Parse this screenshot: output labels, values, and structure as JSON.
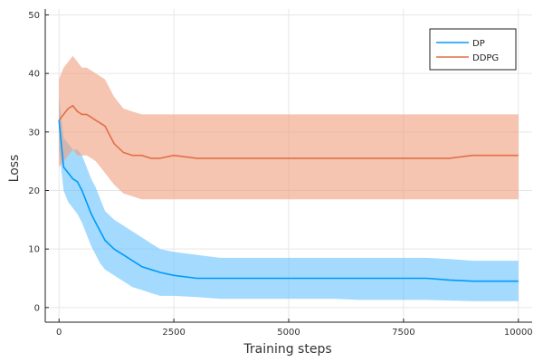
{
  "chart_data": {
    "type": "line",
    "title": "",
    "xlabel": "Training steps",
    "ylabel": "Loss",
    "xlim": [
      -300,
      10300
    ],
    "ylim": [
      -2.5,
      51
    ],
    "x_ticks": [
      0,
      2500,
      5000,
      7500,
      10000
    ],
    "x_tick_labels": [
      "0",
      "2500",
      "5000",
      "7500",
      "10000"
    ],
    "y_ticks": [
      0,
      10,
      20,
      30,
      40,
      50
    ],
    "y_tick_labels": [
      "0",
      "10",
      "20",
      "30",
      "40",
      "50"
    ],
    "grid": true,
    "legend_position": "top-right",
    "x": [
      0,
      100,
      200,
      300,
      400,
      500,
      600,
      700,
      800,
      900,
      1000,
      1200,
      1400,
      1600,
      1800,
      2000,
      2200,
      2500,
      3000,
      3500,
      4000,
      4500,
      5000,
      5500,
      6000,
      6500,
      7000,
      7500,
      8000,
      8500,
      9000,
      9500,
      10000
    ],
    "series": [
      {
        "name": "DP",
        "color": "#009af9",
        "band_color": "#66c2fb",
        "mean": [
          32,
          24,
          23,
          22,
          21.5,
          20,
          18,
          16,
          14.5,
          13,
          11.5,
          10,
          9,
          8,
          7,
          6.5,
          6,
          5.5,
          5,
          5,
          5,
          5,
          5,
          5,
          5,
          5,
          5,
          5,
          5,
          4.7,
          4.5,
          4.5,
          4.5
        ],
        "lower": [
          27,
          20,
          18,
          17,
          16,
          14.5,
          12.5,
          10.5,
          9,
          7.5,
          6.5,
          5.5,
          4.5,
          3.5,
          3,
          2.5,
          2,
          2,
          1.8,
          1.5,
          1.5,
          1.5,
          1.5,
          1.5,
          1.5,
          1.3,
          1.3,
          1.3,
          1.3,
          1.2,
          1.1,
          1.1,
          1.1
        ],
        "upper": [
          36,
          29,
          28,
          27,
          27,
          26,
          24,
          22,
          20.5,
          18.5,
          16.5,
          15,
          14,
          13,
          12,
          11,
          10,
          9.5,
          9,
          8.5,
          8.5,
          8.5,
          8.5,
          8.5,
          8.5,
          8.5,
          8.5,
          8.5,
          8.5,
          8.3,
          8,
          8,
          8
        ]
      },
      {
        "name": "DDPG",
        "color": "#e26f46",
        "band_color": "#ee9e7f",
        "mean": [
          32,
          33,
          34,
          34.5,
          33.5,
          33,
          33,
          32.5,
          32,
          31.5,
          31,
          28,
          26.5,
          26,
          26,
          25.5,
          25.5,
          26,
          25.5,
          25.5,
          25.5,
          25.5,
          25.5,
          25.5,
          25.5,
          25.5,
          25.5,
          25.5,
          25.5,
          25.5,
          26,
          26,
          26
        ],
        "lower": [
          24,
          25,
          26,
          27,
          26,
          26,
          26,
          25.5,
          25,
          24,
          23,
          21,
          19.5,
          19,
          18.5,
          18.5,
          18.5,
          18.5,
          18.5,
          18.5,
          18.5,
          18.5,
          18.5,
          18.5,
          18.5,
          18.5,
          18.5,
          18.5,
          18.5,
          18.5,
          18.5,
          18.5,
          18.5
        ],
        "upper": [
          39,
          41,
          42,
          43,
          42,
          41,
          41,
          40.5,
          40,
          39.5,
          39,
          36,
          34,
          33.5,
          33,
          33,
          33,
          33,
          33,
          33,
          33,
          33,
          33,
          33,
          33,
          33,
          33,
          33,
          33,
          33,
          33,
          33,
          33
        ]
      }
    ]
  }
}
